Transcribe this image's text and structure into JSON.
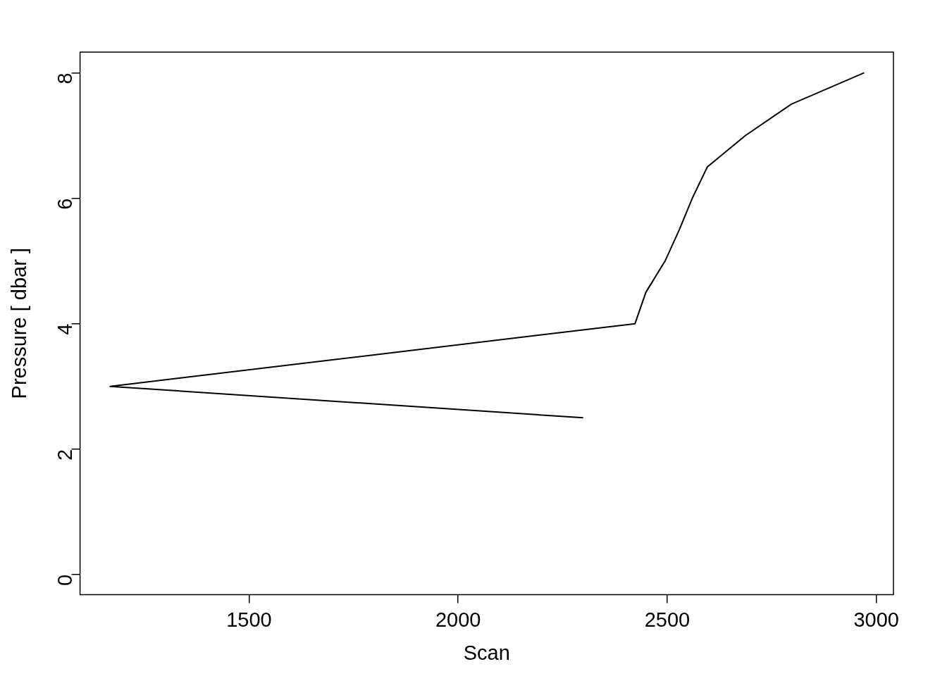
{
  "chart_data": {
    "type": "line",
    "xlabel": "Scan",
    "ylabel": "Pressure [ dbar ]",
    "x": [
      2299,
      1168,
      2423,
      2449,
      2495,
      2529,
      2560,
      2596,
      2687,
      2797,
      2971
    ],
    "series": [
      {
        "color": "#000000",
        "values": [
          2.5,
          3,
          4,
          4.5,
          5,
          5.5,
          6,
          6.5,
          7,
          7.5,
          8
        ]
      }
    ],
    "xlim": [
      1096,
      3041
    ],
    "ylim": [
      -0.32,
      8.33
    ],
    "xticks": [
      1500,
      2000,
      2500,
      3000
    ],
    "yticks": [
      0,
      2,
      4,
      6,
      8
    ],
    "grid": false,
    "legend": false,
    "marker": "none",
    "line_style": "solid"
  }
}
